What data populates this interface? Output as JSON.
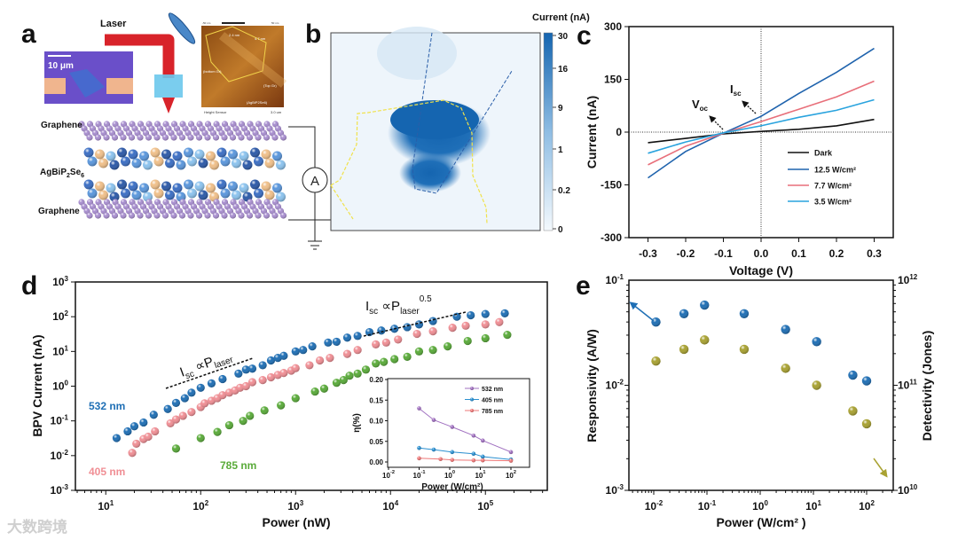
{
  "panel_labels": {
    "a": "a",
    "b": "b",
    "c": "c",
    "d": "d",
    "e": "e"
  },
  "panel_a": {
    "laser_label": "Laser",
    "scale_bar": "10 μm",
    "afm": {
      "colorbar_min": "-50 nm",
      "colorbar_max": "50 nm",
      "step1": "2.4 nm",
      "step2": "4.7 nm",
      "bottom_gr": "(bottom Gr)",
      "top_gr": "(Top Gr)",
      "crystal": "(AgBiP2Se6)",
      "footer": "Height Sensor",
      "scale": "3.0 um"
    },
    "layer_top": "Graphene",
    "layer_mid": {
      "a": "AgBiP",
      "s1": "2",
      "b": "Se",
      "s2": "6"
    },
    "layer_bottom": "Graphene",
    "ammeter": "A"
  },
  "panel_b": {
    "colorbar_title": "Current (nA)",
    "colorbar_ticks": [
      "30",
      "16",
      "9",
      "1",
      "0.2",
      "0"
    ]
  },
  "watermark": "大数跨境",
  "chart_data": [
    {
      "id": "c",
      "type": "line",
      "title": "",
      "xlabel": "Voltage (V)",
      "ylabel": "Current (nA)",
      "xlim": [
        -0.35,
        0.35
      ],
      "ylim": [
        -300,
        300
      ],
      "xticks": [
        -0.3,
        -0.2,
        -0.1,
        0.0,
        0.1,
        0.2,
        0.3
      ],
      "xtick_labels": [
        "-0.3",
        "-0.2",
        "-0.1",
        "0.0",
        "0.1",
        "0.2",
        "0.3"
      ],
      "yticks": [
        -300,
        -150,
        0,
        150,
        300
      ],
      "ytick_labels": [
        "-300",
        "-150",
        "0",
        "150",
        "300"
      ],
      "legend_position": "bottom-right",
      "x": [
        -0.3,
        -0.2,
        -0.1,
        0.0,
        0.1,
        0.2,
        0.3
      ],
      "series": [
        {
          "name": "Dark",
          "color": "#111111",
          "values": [
            -30,
            -18,
            -5,
            2,
            8,
            18,
            36
          ]
        },
        {
          "name": "12.5 W/cm²",
          "color": "#1f63ad",
          "values": [
            -130,
            -55,
            -3,
            45,
            110,
            170,
            238
          ]
        },
        {
          "name": "7.7 W/cm²",
          "color": "#e86f7a",
          "values": [
            -93,
            -40,
            -3,
            30,
            65,
            100,
            145
          ]
        },
        {
          "name": "3.5 W/cm²",
          "color": "#29a3de",
          "values": [
            -60,
            -28,
            -2,
            18,
            42,
            62,
            92
          ]
        }
      ],
      "annotations": {
        "voc": {
          "main": "V",
          "sub": "oc"
        },
        "isc": {
          "main": "I",
          "sub": "sc"
        }
      }
    },
    {
      "id": "d",
      "type": "scatter",
      "xlabel": "Power (nW)",
      "ylabel": "BPV Current (nA)",
      "xscale": "log",
      "yscale": "log",
      "xlim": [
        4.8,
        480000
      ],
      "ylim": [
        0.001,
        1000
      ],
      "xtick_labels": [
        [
          "10",
          "1"
        ],
        [
          "10",
          "2"
        ],
        [
          "10",
          "3"
        ],
        [
          "10",
          "4"
        ],
        [
          "10",
          "5"
        ]
      ],
      "xticks": [
        10,
        100,
        1000,
        10000,
        100000
      ],
      "ytick_labels": [
        [
          "10",
          "-3"
        ],
        [
          "10",
          "-2"
        ],
        [
          "10",
          "-1"
        ],
        [
          "10",
          "0"
        ],
        [
          "10",
          "1"
        ],
        [
          "10",
          "2"
        ],
        [
          "10",
          "3"
        ]
      ],
      "yticks": [
        0.001,
        0.01,
        0.1,
        1,
        10,
        100,
        1000
      ],
      "series": [
        {
          "name": "532 nm",
          "color": "#1f6fb5",
          "x": [
            13,
            17,
            20,
            25,
            32,
            45,
            55,
            68,
            80,
            100,
            130,
            170,
            250,
            300,
            350,
            450,
            550,
            650,
            750,
            1000,
            1200,
            1500,
            2200,
            2700,
            3500,
            4500,
            6000,
            8000,
            11000,
            15000,
            20000,
            28000,
            50000,
            70000,
            100000,
            160000
          ],
          "y": [
            0.032,
            0.05,
            0.07,
            0.09,
            0.15,
            0.22,
            0.33,
            0.45,
            0.65,
            0.9,
            1.2,
            1.6,
            2.3,
            3,
            3.2,
            4,
            5.5,
            6.5,
            7.5,
            10,
            11,
            14,
            18,
            19,
            25,
            28,
            36,
            40,
            45,
            50,
            60,
            75,
            100,
            110,
            120,
            125
          ]
        },
        {
          "name": "405 nm",
          "color": "#f08f95",
          "x": [
            19,
            21,
            25,
            28,
            33,
            48,
            55,
            65,
            80,
            100,
            110,
            130,
            150,
            170,
            200,
            230,
            260,
            300,
            350,
            450,
            550,
            650,
            750,
            900,
            1000,
            1400,
            1800,
            2300,
            3500,
            4500,
            7000,
            9000,
            12000,
            19000,
            28000,
            45000,
            62000,
            100000,
            140000
          ],
          "y": [
            0.012,
            0.022,
            0.03,
            0.035,
            0.05,
            0.085,
            0.11,
            0.14,
            0.18,
            0.25,
            0.32,
            0.38,
            0.45,
            0.55,
            0.65,
            0.75,
            0.9,
            1.0,
            1.3,
            1.5,
            1.8,
            2.1,
            2.4,
            2.8,
            3.3,
            4,
            5.5,
            6.5,
            8.5,
            11,
            16,
            18,
            22,
            32,
            38,
            48,
            55,
            60,
            70
          ]
        },
        {
          "name": "785 nm",
          "color": "#5aab3a",
          "x": [
            55,
            100,
            150,
            200,
            280,
            330,
            470,
            700,
            1000,
            1600,
            2000,
            2700,
            3200,
            3700,
            4500,
            5500,
            7000,
            8500,
            11000,
            15000,
            20000,
            28000,
            40000,
            65000,
            100000,
            170000
          ],
          "y": [
            0.016,
            0.032,
            0.048,
            0.075,
            0.1,
            0.14,
            0.2,
            0.28,
            0.45,
            0.7,
            0.85,
            1.25,
            1.5,
            2,
            2.3,
            3,
            4.5,
            5,
            6,
            7,
            10,
            11,
            14,
            20,
            24,
            30
          ]
        }
      ],
      "annotations": {
        "linear": {
          "i": "I",
          "isub": "sc",
          "prop": " ∝P",
          "psub": "laser"
        },
        "sqrt": {
          "i": "I",
          "isub": "sc",
          "prop": " ∝P",
          "psub": "laser",
          "exp": "0.5"
        }
      }
    },
    {
      "id": "d_inset",
      "type": "line",
      "xlabel": "Power (W/cm²)",
      "ylabel": "η(%)",
      "xscale": "log",
      "xlim": [
        0.008,
        400
      ],
      "ylim": [
        0,
        0.2
      ],
      "xticks": [
        0.01,
        0.1,
        1,
        10,
        100
      ],
      "xtick_labels": [
        [
          "10",
          "-2"
        ],
        [
          "10",
          "-1"
        ],
        [
          "10",
          "0"
        ],
        [
          "10",
          "1"
        ],
        [
          "10",
          "2"
        ]
      ],
      "yticks": [
        0,
        0.05,
        0.1,
        0.15,
        0.2
      ],
      "ytick_labels": [
        "0.00",
        "0.05",
        "0.10",
        "0.15",
        "0.20"
      ],
      "legend_position": "top-right",
      "series": [
        {
          "name": "532 nm",
          "color": "#a070c0",
          "x": [
            0.1,
            0.3,
            1.2,
            6,
            12,
            100
          ],
          "y": [
            0.13,
            0.102,
            0.085,
            0.064,
            0.052,
            0.024
          ]
        },
        {
          "name": "405 nm",
          "color": "#2a8fd0",
          "x": [
            0.1,
            0.3,
            1.2,
            6,
            12,
            100
          ],
          "y": [
            0.034,
            0.03,
            0.024,
            0.02,
            0.013,
            0.006
          ]
        },
        {
          "name": "785 nm",
          "color": "#ee7777",
          "x": [
            0.1,
            0.5,
            1.2,
            6,
            12,
            100
          ],
          "y": [
            0.009,
            0.007,
            0.005,
            0.004,
            0.004,
            0.003
          ]
        }
      ]
    },
    {
      "id": "e",
      "type": "scatter",
      "xlabel": "Power (W/cm² )",
      "ylabel": "Responsivity (A/W)",
      "y2label": "Detectivity (Jones)",
      "xscale": "log",
      "yscale": "log",
      "xlim": [
        0.0034,
        320
      ],
      "ylim": [
        0.001,
        0.1
      ],
      "y2lim": [
        10000000000.0,
        1000000000000.0
      ],
      "xticks": [
        0.01,
        0.1,
        1,
        10,
        100
      ],
      "xtick_labels": [
        [
          "10",
          "-2"
        ],
        [
          "10",
          "-1"
        ],
        [
          "10",
          "0"
        ],
        [
          "10",
          "1"
        ],
        [
          "10",
          "2"
        ]
      ],
      "yticks": [
        0.001,
        0.01,
        0.1
      ],
      "ytick_labels": [
        [
          "10",
          "-3"
        ],
        [
          "10",
          "-2"
        ],
        [
          "10",
          "-1"
        ]
      ],
      "y2ticks": [
        10000000000.0,
        100000000000.0,
        1000000000000.0
      ],
      "y2tick_labels": [
        [
          "10",
          "10"
        ],
        [
          "10",
          "11"
        ],
        [
          "10",
          "12"
        ]
      ],
      "series": [
        {
          "name": "Responsivity",
          "axis": "left",
          "color": "#1f6fb5",
          "x": [
            0.011,
            0.037,
            0.09,
            0.5,
            3,
            11.5,
            55,
            100
          ],
          "y": [
            0.04,
            0.048,
            0.058,
            0.048,
            0.034,
            0.026,
            0.0125,
            0.011
          ]
        },
        {
          "name": "Detectivity",
          "axis": "right",
          "color": "#a9a232",
          "x": [
            0.011,
            0.037,
            0.09,
            0.5,
            3,
            11.5,
            55,
            100
          ],
          "y": [
            170000000000.0,
            220000000000.0,
            270000000000.0,
            220000000000.0,
            145000000000.0,
            100000000000.0,
            57000000000.0,
            43000000000.0
          ]
        }
      ]
    }
  ]
}
